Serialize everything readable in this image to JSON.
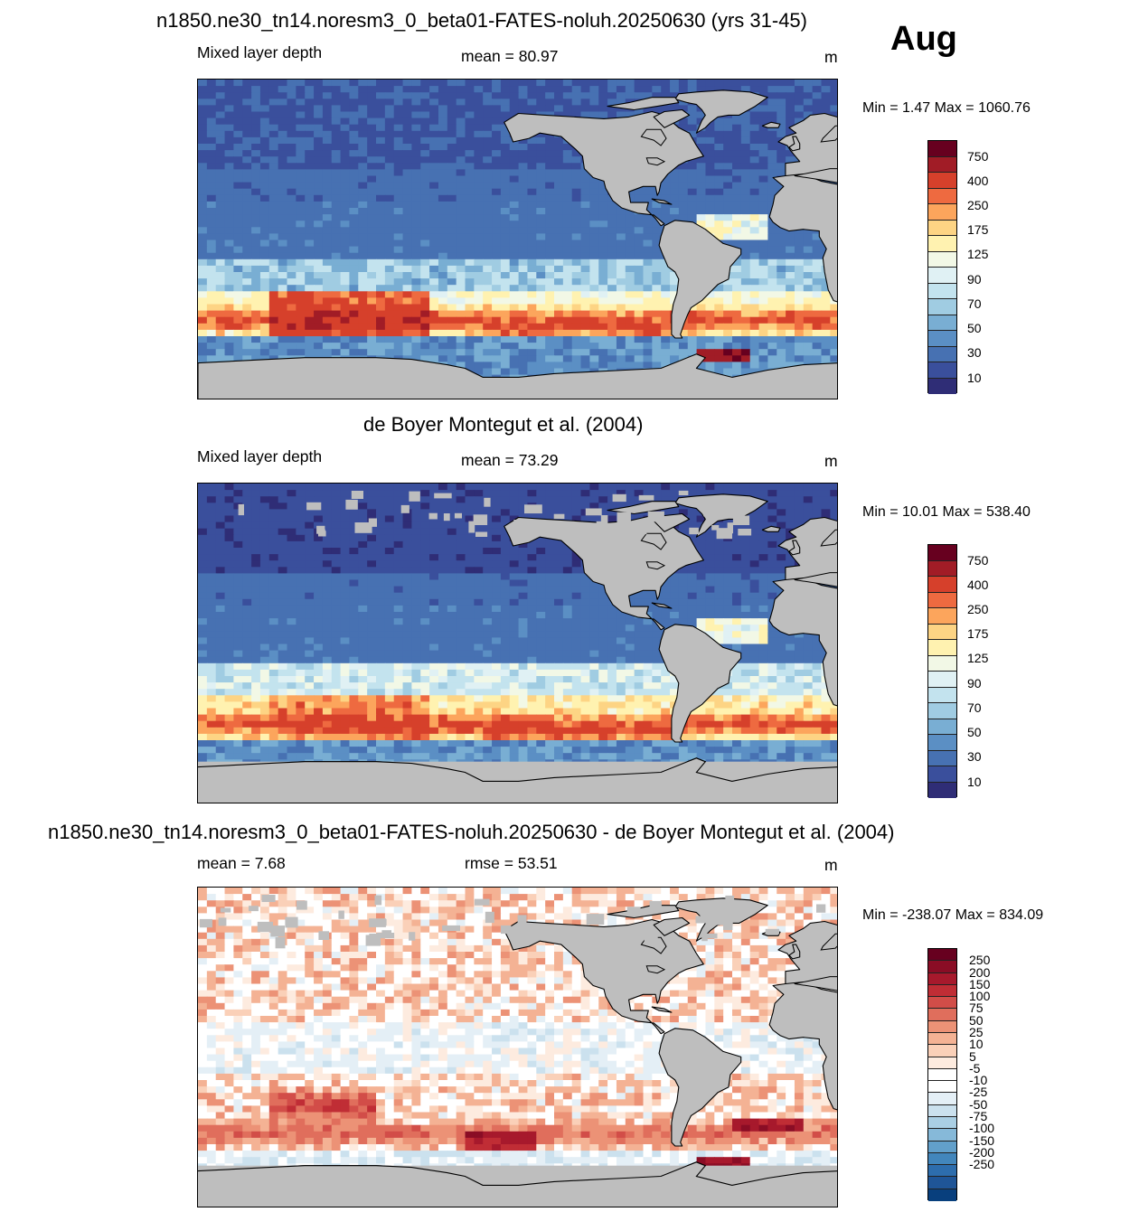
{
  "month": "Aug",
  "panels": [
    {
      "title": "n1850.ne30_tn14.noresm3_0_beta01-FATES-noluh.20250630 (yrs 31-45)",
      "left_label": "Mixed layer depth",
      "mean_text": "mean =  80.97",
      "unit": "m",
      "minmax": "Min =    1.47 Max = 1060.76"
    },
    {
      "title": "de Boyer Montegut et al. (2004)",
      "left_label": "Mixed layer depth",
      "mean_text": "mean =  73.29",
      "unit": "m",
      "minmax": "Min =  10.01 Max = 538.40"
    },
    {
      "title": "n1850.ne30_tn14.noresm3_0_beta01-FATES-noluh.20250630 - de Boyer Montegut et al. (2004)",
      "left_label": "mean =    7.68",
      "mean_text": "rmse =  53.51",
      "unit": "m",
      "minmax": "Min = -238.07 Max = 834.09"
    }
  ],
  "chart_data": [
    {
      "type": "heatmap",
      "title": "n1850.ne30_tn14.noresm3_0_beta01-FATES-noluh.20250630 (yrs 31-45)",
      "field": "Mixed layer depth",
      "unit": "m",
      "mean": 80.97,
      "min": 1.47,
      "max": 1060.76,
      "colorbar_labels": [
        "750",
        "400",
        "250",
        "175",
        "125",
        "90",
        "70",
        "50",
        "30",
        "10"
      ],
      "colorbar_colors": [
        "#67001f",
        "#a11c26",
        "#d6402b",
        "#ee6a40",
        "#fca55c",
        "#fdd484",
        "#fff2b0",
        "#f2f8e6",
        "#e0f1f4",
        "#c3e3ee",
        "#a0cce2",
        "#79aed3",
        "#5b8fc4",
        "#4771b2",
        "#3a4f9c",
        "#2f2d76"
      ]
    },
    {
      "type": "heatmap",
      "title": "de Boyer Montegut et al. (2004)",
      "field": "Mixed layer depth",
      "unit": "m",
      "mean": 73.29,
      "min": 10.01,
      "max": 538.4,
      "colorbar_labels": [
        "750",
        "400",
        "250",
        "175",
        "125",
        "90",
        "70",
        "50",
        "30",
        "10"
      ],
      "colorbar_colors": [
        "#67001f",
        "#a11c26",
        "#d6402b",
        "#ee6a40",
        "#fca55c",
        "#fdd484",
        "#fff2b0",
        "#f2f8e6",
        "#e0f1f4",
        "#c3e3ee",
        "#a0cce2",
        "#79aed3",
        "#5b8fc4",
        "#4771b2",
        "#3a4f9c",
        "#2f2d76"
      ]
    },
    {
      "type": "heatmap",
      "title": "n1850.ne30_tn14.noresm3_0_beta01-FATES-noluh.20250630 - de Boyer Montegut et al. (2004)",
      "unit": "m",
      "mean": 7.68,
      "rmse": 53.51,
      "min": -238.07,
      "max": 834.09,
      "colorbar_labels": [
        "250",
        "200",
        "150",
        "100",
        "75",
        "50",
        "25",
        "10",
        "5",
        "-5",
        "-10",
        "-25",
        "-50",
        "-75",
        "-100",
        "-150",
        "-200",
        "-250"
      ],
      "colorbar_colors": [
        "#67001f",
        "#8a0d25",
        "#a7192c",
        "#c02d35",
        "#d24d48",
        "#e06e5c",
        "#ec9276",
        "#f4b294",
        "#fad0b8",
        "#fdebdf",
        "#ffffff",
        "#ffffff",
        "#e4eff6",
        "#cbe1ee",
        "#aacfe4",
        "#86b9d9",
        "#62a0cb",
        "#4286bc",
        "#2d6dad",
        "#1f5597",
        "#083f7d"
      ]
    }
  ],
  "colors": {
    "land": "#bebebe",
    "coast": "#000000"
  }
}
